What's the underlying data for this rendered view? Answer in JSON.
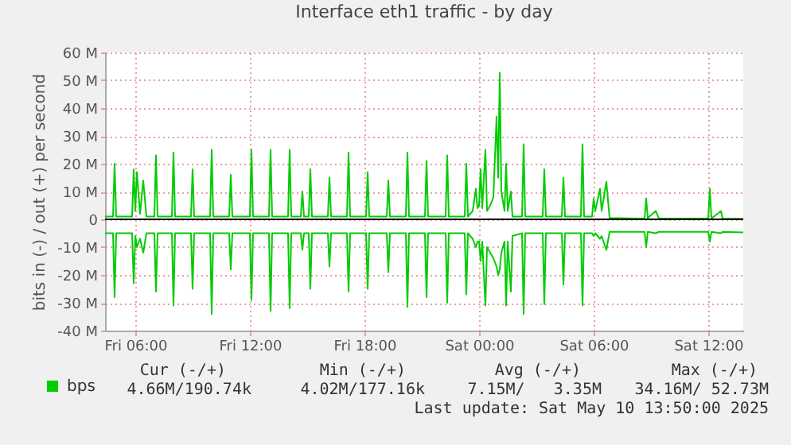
{
  "chart_data": {
    "type": "line",
    "title": "Interface eth1 traffic - by day",
    "ylabel": "bits in (-) / out (+) per second",
    "x": [
      "2025-05-09T04:25",
      "2025-05-09T04:50",
      "2025-05-09T04:55",
      "2025-05-09T05:00",
      "2025-05-09T05:50",
      "2025-05-09T05:55",
      "2025-05-09T06:00",
      "2025-05-09T06:05",
      "2025-05-09T06:15",
      "2025-05-09T06:25",
      "2025-05-09T06:35",
      "2025-05-09T06:45",
      "2025-05-09T07:00",
      "2025-05-09T07:05",
      "2025-05-09T07:10",
      "2025-05-09T07:55",
      "2025-05-09T08:00",
      "2025-05-09T08:05",
      "2025-05-09T08:55",
      "2025-05-09T09:00",
      "2025-05-09T09:05",
      "2025-05-09T09:55",
      "2025-05-09T10:00",
      "2025-05-09T10:05",
      "2025-05-09T10:55",
      "2025-05-09T11:00",
      "2025-05-09T11:05",
      "2025-05-09T12:00",
      "2025-05-09T12:05",
      "2025-05-09T12:10",
      "2025-05-09T13:00",
      "2025-05-09T13:05",
      "2025-05-09T13:10",
      "2025-05-09T14:00",
      "2025-05-09T14:05",
      "2025-05-09T14:10",
      "2025-05-09T14:40",
      "2025-05-09T14:45",
      "2025-05-09T14:50",
      "2025-05-09T15:05",
      "2025-05-09T15:10",
      "2025-05-09T15:15",
      "2025-05-09T16:05",
      "2025-05-09T16:10",
      "2025-05-09T16:15",
      "2025-05-09T17:05",
      "2025-05-09T17:10",
      "2025-05-09T17:15",
      "2025-05-09T18:05",
      "2025-05-09T18:10",
      "2025-05-09T18:15",
      "2025-05-09T19:10",
      "2025-05-09T19:15",
      "2025-05-09T19:20",
      "2025-05-09T20:10",
      "2025-05-09T20:15",
      "2025-05-09T20:20",
      "2025-05-09T21:10",
      "2025-05-09T21:15",
      "2025-05-09T21:20",
      "2025-05-09T22:15",
      "2025-05-09T22:20",
      "2025-05-09T22:25",
      "2025-05-09T23:15",
      "2025-05-09T23:20",
      "2025-05-09T23:25",
      "2025-05-09T23:40",
      "2025-05-09T23:50",
      "2025-05-09T23:55",
      "2025-05-10T00:00",
      "2025-05-10T00:05",
      "2025-05-10T00:10",
      "2025-05-10T00:20",
      "2025-05-10T00:25",
      "2025-05-10T00:35",
      "2025-05-10T00:45",
      "2025-05-10T00:55",
      "2025-05-10T01:00",
      "2025-05-10T01:05",
      "2025-05-10T01:10",
      "2025-05-10T01:20",
      "2025-05-10T01:25",
      "2025-05-10T01:30",
      "2025-05-10T01:40",
      "2025-05-10T01:45",
      "2025-05-10T02:15",
      "2025-05-10T02:20",
      "2025-05-10T02:25",
      "2025-05-10T03:20",
      "2025-05-10T03:25",
      "2025-05-10T03:30",
      "2025-05-10T04:20",
      "2025-05-10T04:25",
      "2025-05-10T04:30",
      "2025-05-10T05:20",
      "2025-05-10T05:25",
      "2025-05-10T05:30",
      "2025-05-10T05:55",
      "2025-05-10T06:00",
      "2025-05-10T06:05",
      "2025-05-10T06:20",
      "2025-05-10T06:25",
      "2025-05-10T06:40",
      "2025-05-10T06:50",
      "2025-05-10T08:15",
      "2025-05-10T08:40",
      "2025-05-10T08:45",
      "2025-05-10T08:50",
      "2025-05-10T09:15",
      "2025-05-10T09:25",
      "2025-05-10T12:00",
      "2025-05-10T12:05",
      "2025-05-10T12:10",
      "2025-05-10T12:40",
      "2025-05-10T12:45",
      "2025-05-10T13:50"
    ],
    "series": [
      {
        "name": "bps",
        "color": "#00cc00",
        "values": [
          1,
          1,
          20,
          1,
          1,
          18,
          3,
          17,
          2,
          14,
          1,
          1,
          1,
          23,
          1,
          1,
          24,
          1,
          1,
          18,
          1,
          1,
          25,
          1,
          1,
          16,
          1,
          1,
          25,
          1,
          1,
          25,
          1,
          1,
          25,
          1,
          1,
          10,
          1,
          1,
          18,
          1,
          1,
          15,
          1,
          1,
          24,
          1,
          1,
          17,
          1,
          1,
          14,
          1,
          1,
          24,
          1,
          1,
          21,
          1,
          1,
          23,
          1,
          1,
          20,
          1,
          3,
          11,
          4,
          5,
          18,
          4,
          25,
          3,
          5,
          8,
          37,
          15,
          52.7,
          10,
          3,
          20,
          3,
          10,
          1,
          1,
          27,
          1,
          1,
          18,
          1,
          1,
          15,
          1,
          1,
          27,
          1,
          1,
          7.5,
          3,
          11,
          3,
          13.5,
          0.5,
          0.3,
          0.3,
          7.5,
          0.5,
          3,
          0.3,
          0.3,
          11,
          0.3,
          3,
          0.3,
          0.2
        ]
      },
      {
        "color": "#00cc00",
        "values": [
          -5,
          -5,
          -28,
          -5,
          -5,
          -23,
          -6,
          -10,
          -7,
          -12,
          -5,
          -5,
          -5,
          -26,
          -5,
          -5,
          -31,
          -5,
          -5,
          -25,
          -5,
          -5,
          -34,
          -5,
          -5,
          -18,
          -5,
          -5,
          -29,
          -5,
          -5,
          -33,
          -5,
          -5,
          -32,
          -5,
          -5,
          -11,
          -5,
          -5,
          -25,
          -5,
          -5,
          -17,
          -5,
          -5,
          -26,
          -5,
          -5,
          -25,
          -5,
          -5,
          -19,
          -5,
          -5,
          -31.5,
          -5,
          -5,
          -28,
          -5,
          -5,
          -30,
          -5,
          -5,
          -27,
          -5,
          -7,
          -10,
          -8,
          -8,
          -15,
          -8,
          -31,
          -10,
          -12,
          -14,
          -17,
          -20,
          -18,
          -12,
          -8,
          -31,
          -8,
          -26,
          -6,
          -5,
          -34,
          -5,
          -5,
          -30.5,
          -5,
          -5,
          -23.5,
          -5,
          -5,
          -31,
          -5,
          -5,
          -6,
          -5,
          -7,
          -6,
          -11,
          -4.5,
          -4.5,
          -4.5,
          -10,
          -4.5,
          -5,
          -4.5,
          -4.5,
          -8,
          -4.5,
          -5,
          -4.5,
          -4.7
        ]
      }
    ],
    "xlim": [
      "2025-05-09T04:25",
      "2025-05-10T13:50"
    ],
    "xticks": [
      {
        "value": "2025-05-09T06:00",
        "label": "Fri 06:00"
      },
      {
        "value": "2025-05-09T12:00",
        "label": "Fri 12:00"
      },
      {
        "value": "2025-05-09T18:00",
        "label": "Fri 18:00"
      },
      {
        "value": "2025-05-10T00:00",
        "label": "Sat 00:00"
      },
      {
        "value": "2025-05-10T06:00",
        "label": "Sat 06:00"
      },
      {
        "value": "2025-05-10T12:00",
        "label": "Sat 12:00"
      }
    ],
    "ylim": [
      -40,
      60
    ],
    "yticks": [
      {
        "value": -40,
        "label": "-40 M"
      },
      {
        "value": -30,
        "label": "-30 M"
      },
      {
        "value": -20,
        "label": "-20 M"
      },
      {
        "value": -10,
        "label": "-10 M"
      },
      {
        "value": 0,
        "label": "0"
      },
      {
        "value": 10,
        "label": "10 M"
      },
      {
        "value": 20,
        "label": "20 M"
      },
      {
        "value": 30,
        "label": "30 M"
      },
      {
        "value": 40,
        "label": "40 M"
      },
      {
        "value": 50,
        "label": "50 M"
      },
      {
        "value": 60,
        "label": "60 M"
      }
    ],
    "ref_lines": [
      {
        "axis": "y",
        "value": 0,
        "color": "#000000"
      }
    ],
    "grid": true,
    "legend": "bottom left",
    "line_style": "solid",
    "annotations": [
      "Cur (-/+)",
      "Min (-/+)",
      "Avg (-/+)",
      "Max (-/+)",
      "4.66M/190.74k",
      "4.02M/177.16k",
      "7.15M/   3.35M",
      "34.16M/ 52.73M",
      "Last update: Sat May 10 13:50:00 2025"
    ]
  }
}
